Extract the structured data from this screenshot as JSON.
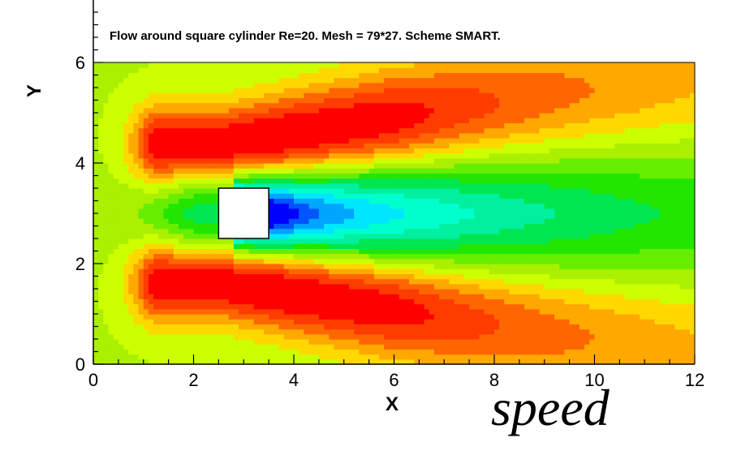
{
  "chart_data": {
    "type": "heatmap",
    "title": "Flow around square cylinder Re=20. Mesh = 79*27. Scheme SMART.",
    "xlabel": "X",
    "ylabel": "Y",
    "xlim": [
      0,
      12
    ],
    "ylim": [
      0,
      6
    ],
    "xticks": [
      "0",
      "2",
      "4",
      "6",
      "8",
      "10",
      "12"
    ],
    "yticks": [
      "0",
      "2",
      "4",
      "6"
    ],
    "grid": false,
    "obstacle": {
      "x": [
        2.5,
        3.5
      ],
      "y": [
        2.5,
        3.5
      ]
    },
    "colormap": [
      "#0000ff",
      "#0055ff",
      "#00a5ff",
      "#00e6ff",
      "#00ffcc",
      "#00f0a0",
      "#00e650",
      "#22e600",
      "#66ee00",
      "#aaf000",
      "#ccff00",
      "#ffd800",
      "#ffa800",
      "#ff6600",
      "#ff3c00",
      "#ff0000"
    ],
    "caption": "speed"
  }
}
